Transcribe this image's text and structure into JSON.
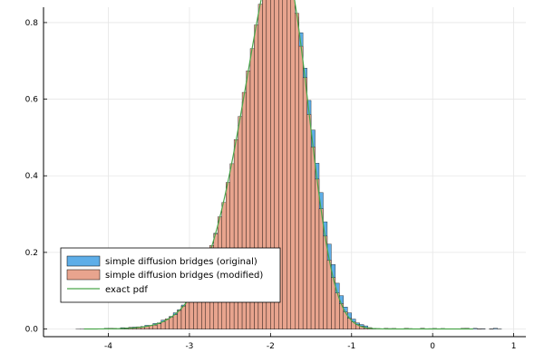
{
  "chart_data": {
    "type": "bar",
    "title": "",
    "xlabel": "",
    "ylabel": "",
    "xlim": [
      -4.8,
      1.15
    ],
    "ylim": [
      -0.02,
      0.84
    ],
    "xticks": [
      -4,
      -3,
      -2,
      -1,
      0,
      1
    ],
    "yticks": [
      0.0,
      0.2,
      0.4,
      0.6,
      0.8
    ],
    "xtick_labels": [
      "-4",
      "-3",
      "-2",
      "-1",
      "0",
      "1"
    ],
    "ytick_labels": [
      "0.0",
      "0.2",
      "0.4",
      "0.6",
      "0.8"
    ],
    "grid": true,
    "legend_position": "bottom-left",
    "bin_width": 0.05,
    "series": [
      {
        "name": "simple diffusion bridges (original)",
        "kind": "histogram",
        "color": "#5eaee8",
        "density": {
          "form": "skew-normal",
          "location": -1.55,
          "scale": 0.62,
          "shape": -2.0,
          "support": [
            -4.4,
            0.82
          ]
        }
      },
      {
        "name": "simple diffusion bridges (modified)",
        "kind": "histogram",
        "color": "#e8a48e",
        "density": {
          "form": "skew-normal",
          "location": -1.58,
          "scale": 0.6,
          "shape": -2.0,
          "support": [
            -4.2,
            0.42
          ]
        }
      },
      {
        "name": "exact pdf",
        "kind": "line",
        "color": "#4aa64a",
        "density": {
          "form": "skew-normal",
          "location": -1.58,
          "scale": 0.6,
          "shape": -2.0,
          "support": [
            -4.3,
            0.5
          ]
        }
      }
    ]
  },
  "colors": {
    "series1": "#5eaee8",
    "series2": "#e8a48e",
    "series3": "#4aa64a",
    "grid": "#e6e6e6"
  }
}
